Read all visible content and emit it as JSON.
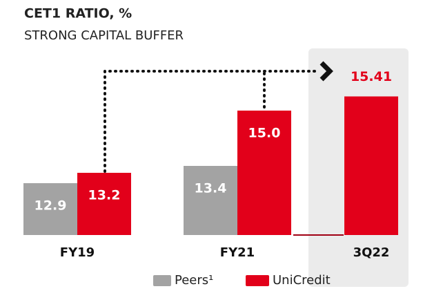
{
  "chart_data": {
    "type": "bar",
    "title": "CET1 RATIO, %",
    "subtitle": "STRONG CAPITAL BUFFER",
    "categories": [
      "FY19",
      "FY21",
      "3Q22"
    ],
    "series": [
      {
        "name": "Peers¹",
        "color": "#a3a3a3",
        "values": [
          12.9,
          13.4,
          null
        ],
        "value_labels": [
          "12.9",
          "13.4",
          null
        ]
      },
      {
        "name": "UniCredit",
        "color": "#e2001a",
        "values": [
          13.2,
          15.0,
          15.41
        ],
        "value_labels": [
          "13.2",
          "15.0",
          "15.41"
        ]
      }
    ],
    "ylim": [
      11.4,
      16
    ],
    "highlight_index": 2
  }
}
